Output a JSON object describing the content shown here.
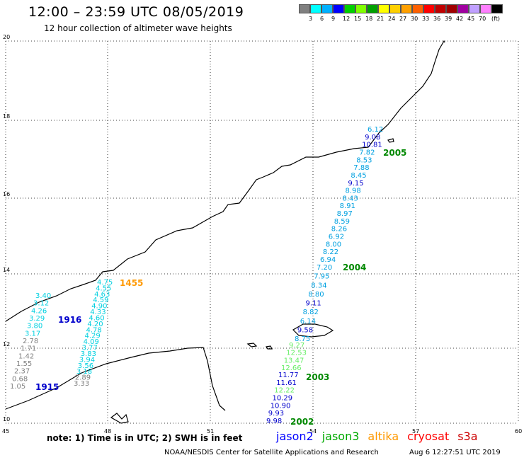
{
  "header": {
    "title": "12:00 – 23:59 UTC 08/05/2019",
    "subtitle": "12 hour collection of altimeter wave heights"
  },
  "legend": {
    "colors": [
      "#808080",
      "#00ffff",
      "#00b0ff",
      "#0000ff",
      "#00d000",
      "#80ff00",
      "#00a000",
      "#ffff00",
      "#ffd000",
      "#ffa000",
      "#ff6000",
      "#ff0000",
      "#c00000",
      "#a00000",
      "#a000a0",
      "#c0a0ff",
      "#ff80ff",
      "#000000"
    ],
    "labels": [
      "3",
      "6",
      "9",
      "12",
      "15",
      "18",
      "21",
      "24",
      "27",
      "30",
      "33",
      "36",
      "39",
      "42",
      "45",
      "70"
    ],
    "unit": "(ft)"
  },
  "axes": {
    "x_labels": [
      "45",
      "48",
      "51",
      "54",
      "57",
      "60"
    ],
    "y_labels": [
      "10",
      "12",
      "14",
      "16",
      "18",
      "20"
    ]
  },
  "tracks": [
    {
      "time": "1915",
      "color": "#0000cc",
      "values": [
        {
          "v": "1.05",
          "c": "#808080"
        },
        {
          "v": "0.68",
          "c": "#808080"
        },
        {
          "v": "2.37",
          "c": "#808080"
        },
        {
          "v": "1.55",
          "c": "#808080"
        },
        {
          "v": "1.42",
          "c": "#808080"
        },
        {
          "v": "1.71",
          "c": "#808080"
        },
        {
          "v": "2.78",
          "c": "#808080"
        },
        {
          "v": "3.17",
          "c": "#00d0e0"
        },
        {
          "v": "3.80",
          "c": "#00d0e0"
        },
        {
          "v": "3.29",
          "c": "#00d0e0"
        },
        {
          "v": "4.26",
          "c": "#00d0e0"
        },
        {
          "v": "3.12",
          "c": "#00d0e0"
        },
        {
          "v": "3.40",
          "c": "#00d0e0"
        }
      ]
    },
    {
      "time": "1916",
      "color": "#0000cc",
      "values": [
        {
          "v": "3.33",
          "c": "#808080"
        },
        {
          "v": "2.89",
          "c": "#808080"
        },
        {
          "v": "3.18",
          "c": "#00d0e0"
        },
        {
          "v": "3.56",
          "c": "#00d0e0"
        },
        {
          "v": "3.94",
          "c": "#00d0e0"
        },
        {
          "v": "3.83",
          "c": "#00d0e0"
        },
        {
          "v": "3.77",
          "c": "#00d0e0"
        },
        {
          "v": "4.09",
          "c": "#00d0e0"
        },
        {
          "v": "4.29",
          "c": "#00d0e0"
        },
        {
          "v": "4.78",
          "c": "#00d0e0"
        },
        {
          "v": "4.20",
          "c": "#00d0e0"
        },
        {
          "v": "4.60",
          "c": "#00d0e0"
        },
        {
          "v": "4.33",
          "c": "#00d0e0"
        },
        {
          "v": "4.90",
          "c": "#00d0e0"
        },
        {
          "v": "4.59",
          "c": "#00d0e0"
        },
        {
          "v": "4.63",
          "c": "#00d0e0"
        },
        {
          "v": "4.55",
          "c": "#00d0e0"
        },
        {
          "v": "4.75",
          "c": "#00d0e0"
        }
      ]
    },
    {
      "time": "1455",
      "color": "#ff9900",
      "values": []
    },
    {
      "time": "2002",
      "color": "#008800",
      "values": [
        {
          "v": "9.98",
          "c": "#0000cc"
        },
        {
          "v": "9.93",
          "c": "#0000cc"
        },
        {
          "v": "10.90",
          "c": "#0000cc"
        },
        {
          "v": "10.29",
          "c": "#0000cc"
        },
        {
          "v": "12.22",
          "c": "#66ee66"
        },
        {
          "v": "11.61",
          "c": "#0000cc"
        },
        {
          "v": "11.77",
          "c": "#0000cc"
        }
      ]
    },
    {
      "time": "2003",
      "color": "#008800",
      "values": [
        {
          "v": "12.66",
          "c": "#66ee66"
        },
        {
          "v": "13.47",
          "c": "#66ee66"
        },
        {
          "v": "12.53",
          "c": "#66ee66"
        },
        {
          "v": "9.27",
          "c": "#66ee66"
        }
      ]
    },
    {
      "time": "2004",
      "color": "#008800",
      "values": [
        {
          "v": "8.75",
          "c": "#00a0e0"
        },
        {
          "v": "9.58",
          "c": "#0000cc"
        },
        {
          "v": "6.14",
          "c": "#00a0e0"
        },
        {
          "v": "8.82",
          "c": "#00a0e0"
        },
        {
          "v": "9.11",
          "c": "#0000cc"
        },
        {
          "v": "8.80",
          "c": "#00a0e0"
        },
        {
          "v": "8.34",
          "c": "#00a0e0"
        },
        {
          "v": "7.95",
          "c": "#00a0e0"
        },
        {
          "v": "7.20",
          "c": "#00a0e0"
        }
      ]
    },
    {
      "time": "2005",
      "color": "#008800",
      "values": [
        {
          "v": "6.94",
          "c": "#00a0e0"
        },
        {
          "v": "8.22",
          "c": "#00a0e0"
        },
        {
          "v": "8.00",
          "c": "#00a0e0"
        },
        {
          "v": "6.92",
          "c": "#00a0e0"
        },
        {
          "v": "8.26",
          "c": "#00a0e0"
        },
        {
          "v": "8.59",
          "c": "#00a0e0"
        },
        {
          "v": "8.97",
          "c": "#00a0e0"
        },
        {
          "v": "8.91",
          "c": "#00a0e0"
        },
        {
          "v": "8.43",
          "c": "#00a0e0"
        },
        {
          "v": "8.98",
          "c": "#00a0e0"
        },
        {
          "v": "9.15",
          "c": "#0000cc"
        },
        {
          "v": "8.45",
          "c": "#00a0e0"
        },
        {
          "v": "7.88",
          "c": "#00a0e0"
        },
        {
          "v": "8.53",
          "c": "#00a0e0"
        },
        {
          "v": "7.82",
          "c": "#00a0e0"
        },
        {
          "v": "10.81",
          "c": "#0000cc"
        },
        {
          "v": "9.08",
          "c": "#0000cc"
        },
        {
          "v": "6.12",
          "c": "#00a0e0"
        }
      ]
    }
  ],
  "footer": {
    "note": "note:  1) Time is in UTC;  2) SWH is in feet",
    "satellites": [
      {
        "name": "jason2",
        "color": "#0000ff"
      },
      {
        "name": "jason3",
        "color": "#00aa00"
      },
      {
        "name": "altika",
        "color": "#ff9900"
      },
      {
        "name": "cryosat",
        "color": "#ff0000"
      },
      {
        "name": "s3a",
        "color": "#cc0000"
      }
    ],
    "credit": "NOAA/NESDIS Center for Satellite Applications and Research",
    "timestamp": "Aug  6 12:27:51 UTC 2019"
  }
}
